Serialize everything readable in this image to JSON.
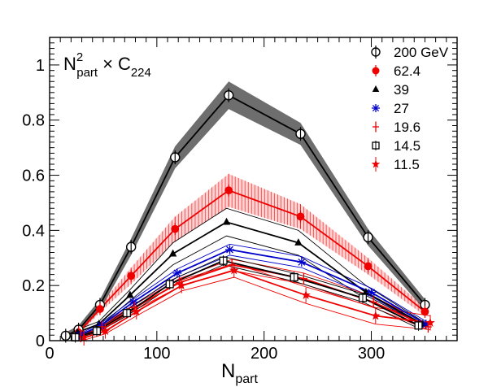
{
  "chart_data": {
    "type": "line",
    "title": {
      "base": "N",
      "sup": "2",
      "sub": "part",
      "op": "×",
      "var": "C",
      "var_sub": "224"
    },
    "xlabel": {
      "base": "N",
      "sub": "part"
    },
    "ylabel": "",
    "xlim": [
      0,
      380
    ],
    "ylim": [
      0,
      1.1
    ],
    "x_ticks": [
      0,
      100,
      200,
      300
    ],
    "y_ticks": [
      0,
      0.2,
      0.4,
      0.6,
      0.8,
      1
    ],
    "y_tick_labels": [
      "0",
      "0.2",
      "0.4",
      "0.6",
      "0.8",
      "1"
    ],
    "grid": false,
    "legend_position": "top-right",
    "series": [
      {
        "name": "200 GeV",
        "color": "#000000",
        "marker": "circle-open",
        "x": [
          15,
          27,
          47,
          76,
          117,
          167,
          234,
          297,
          350
        ],
        "y": [
          0.018,
          0.04,
          0.13,
          0.34,
          0.665,
          0.89,
          0.75,
          0.375,
          0.13
        ],
        "band": {
          "color": "#555555",
          "width": [
            0.012,
            0.015,
            0.02,
            0.03,
            0.04,
            0.05,
            0.04,
            0.03,
            0.02
          ]
        }
      },
      {
        "name": "62.4",
        "color": "#ee0000",
        "marker": "circle-filled",
        "x": [
          27,
          47,
          76,
          117,
          167,
          234,
          297,
          350
        ],
        "y": [
          0.03,
          0.115,
          0.235,
          0.405,
          0.545,
          0.45,
          0.27,
          0.105
        ],
        "band": {
          "color": "#ee0000",
          "width": [
            0.01,
            0.012,
            0.03,
            0.045,
            0.06,
            0.045,
            0.03,
            0.015
          ]
        }
      },
      {
        "name": "39",
        "color": "#000000",
        "marker": "triangle-filled",
        "x": [
          26,
          46,
          75,
          115,
          165,
          232,
          295,
          348
        ],
        "y": [
          0.03,
          0.06,
          0.165,
          0.315,
          0.43,
          0.355,
          0.175,
          0.06
        ],
        "band": {
          "color": "#000000",
          "width": [
            0.01,
            0.01,
            0.02,
            0.04,
            0.05,
            0.045,
            0.025,
            0.01
          ]
        }
      },
      {
        "name": "27",
        "color": "#0000cc",
        "marker": "asterisk",
        "x": [
          28,
          48,
          78,
          119,
          168,
          235,
          300,
          351
        ],
        "y": [
          0.02,
          0.055,
          0.14,
          0.245,
          0.33,
          0.285,
          0.175,
          0.06
        ],
        "band": {
          "color": "#0000cc",
          "width": [
            0.005,
            0.008,
            0.01,
            0.015,
            0.02,
            0.02,
            0.015,
            0.01
          ]
        }
      },
      {
        "name": "19.6",
        "color": "#ee0000",
        "marker": "plus",
        "x": [
          29,
          49,
          79,
          121,
          170,
          237,
          302,
          353
        ],
        "y": [
          0.015,
          0.05,
          0.12,
          0.21,
          0.275,
          0.225,
          0.14,
          0.05
        ],
        "band": {
          "color": "#ee0000",
          "width": [
            0.005,
            0.008,
            0.01,
            0.015,
            0.02,
            0.02,
            0.02,
            0.01
          ]
        }
      },
      {
        "name": "14.5",
        "color": "#000000",
        "marker": "square-open",
        "x": [
          24,
          44,
          72,
          112,
          162,
          228,
          292,
          344
        ],
        "y": [
          0.012,
          0.035,
          0.1,
          0.205,
          0.29,
          0.23,
          0.155,
          0.055
        ],
        "band": {
          "color": "#000000",
          "width": [
            0.004,
            0.006,
            0.01,
            0.012,
            0.015,
            0.015,
            0.015,
            0.01
          ]
        }
      },
      {
        "name": "11.5",
        "color": "#ee0000",
        "marker": "star",
        "x": [
          32,
          52,
          81,
          123,
          172,
          239,
          304,
          355
        ],
        "y": [
          0.01,
          0.035,
          0.105,
          0.2,
          0.255,
          0.165,
          0.09,
          0.065
        ],
        "band": {
          "color": "#ee0000",
          "width": [
            0.008,
            0.01,
            0.015,
            0.02,
            0.025,
            0.03,
            0.03,
            0.025
          ]
        }
      }
    ]
  }
}
